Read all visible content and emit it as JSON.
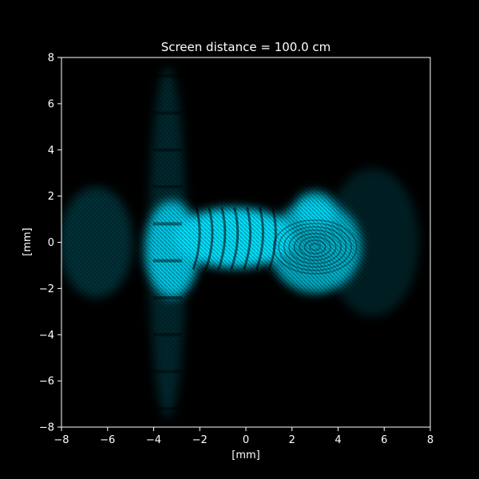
{
  "chart_data": {
    "type": "heatmap",
    "title": "Screen distance = 100.0 cm",
    "xlabel": "[mm]",
    "ylabel": "[mm]",
    "xlim": [
      -8,
      8
    ],
    "ylim": [
      -8,
      8
    ],
    "xticks": [
      -8,
      -6,
      -4,
      -2,
      0,
      2,
      4,
      6,
      8
    ],
    "yticks": [
      -8,
      -6,
      -4,
      -2,
      0,
      2,
      4,
      6,
      8
    ],
    "xtick_labels": [
      "−8",
      "−6",
      "−4",
      "−2",
      "0",
      "2",
      "4",
      "6",
      "8"
    ],
    "ytick_labels": [
      "−8",
      "−6",
      "−4",
      "−2",
      "0",
      "2",
      "4",
      "6",
      "8"
    ],
    "colormap": [
      "#000000",
      "#00dfff"
    ],
    "background": "#000000",
    "foreground": "#ffffff",
    "grid": false,
    "intensity_regions": [
      {
        "name": "left-lobe",
        "center": [
          -3.2,
          -0.3
        ],
        "radius": [
          1.2,
          2.1
        ],
        "intensity": 0.85
      },
      {
        "name": "center-band",
        "center": [
          -0.5,
          0.2
        ],
        "radius": [
          2.6,
          1.3
        ],
        "intensity": 1.0
      },
      {
        "name": "right-ring",
        "center": [
          3.0,
          -0.2
        ],
        "radius": [
          2.0,
          2.0
        ],
        "intensity": 0.75
      },
      {
        "name": "upper-right-arc",
        "center": [
          3.0,
          1.4
        ],
        "radius": [
          0.9,
          0.8
        ],
        "intensity": 0.8
      },
      {
        "name": "vertical-streak",
        "center": [
          -3.4,
          0.0
        ],
        "radius": [
          0.8,
          7.6
        ],
        "intensity": 0.18
      },
      {
        "name": "left-halo",
        "center": [
          -6.5,
          0.0
        ],
        "radius": [
          1.6,
          2.4
        ],
        "intensity": 0.22
      },
      {
        "name": "right-halo",
        "center": [
          5.5,
          0.0
        ],
        "radius": [
          2.0,
          3.2
        ],
        "intensity": 0.15
      }
    ]
  }
}
